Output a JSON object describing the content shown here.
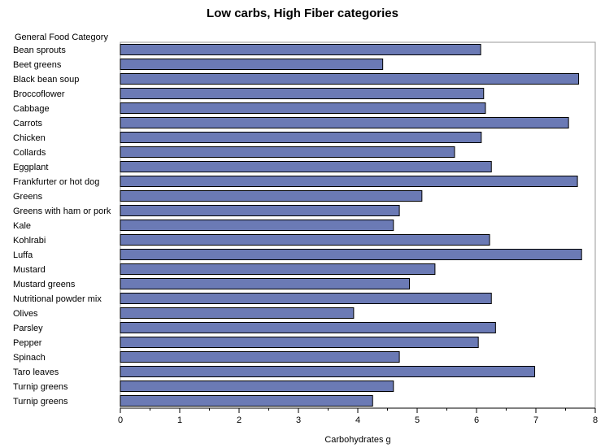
{
  "chart_data": {
    "type": "bar",
    "orientation": "horizontal",
    "title": "Low carbs, High Fiber categories",
    "ylabel": "General Food Category",
    "xlabel": "Carbohydrates g",
    "xlim": [
      0,
      8
    ],
    "xticks": [
      0,
      1,
      2,
      3,
      4,
      5,
      6,
      7,
      8
    ],
    "grid": false,
    "bar_color": "#6B7AB5",
    "categories": [
      "Bean sprouts",
      "Beet greens",
      "Black bean soup",
      "Broccoflower",
      "Cabbage",
      "Carrots",
      "Chicken",
      "Collards",
      "Eggplant",
      "Frankfurter or hot dog",
      "Greens",
      "Greens with ham or pork",
      "Kale",
      "Kohlrabi",
      "Luffa",
      "Mustard",
      "Mustard greens",
      "Nutritional powder mix",
      "Olives",
      "Parsley",
      "Pepper",
      "Spinach",
      "Taro leaves",
      "Turnip greens",
      "Turnip greens"
    ],
    "values": [
      6.07,
      4.42,
      7.72,
      6.12,
      6.15,
      7.55,
      6.08,
      5.63,
      6.25,
      7.7,
      5.08,
      4.7,
      4.6,
      6.22,
      7.77,
      5.3,
      4.87,
      6.25,
      3.93,
      6.32,
      6.03,
      4.7,
      6.98,
      4.6,
      4.25
    ]
  }
}
